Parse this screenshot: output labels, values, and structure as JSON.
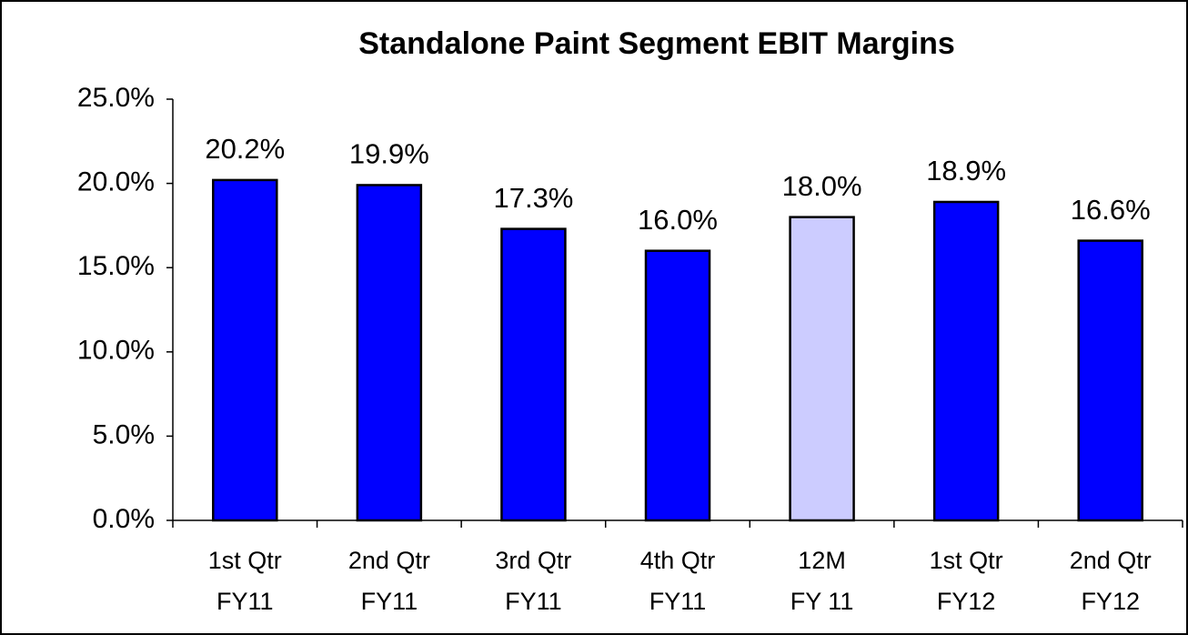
{
  "chart_data": {
    "type": "bar",
    "title": "Standalone Paint Segment EBIT Margins",
    "categories": [
      "1st Qtr\nFY11",
      "2nd Qtr\nFY11",
      "3rd Qtr\nFY11",
      "4th Qtr\nFY11",
      "12M\nFY 11",
      "1st Qtr\nFY12",
      "2nd Qtr\nFY12"
    ],
    "values": [
      20.2,
      19.9,
      17.3,
      16.0,
      18.0,
      18.9,
      16.6
    ],
    "value_labels": [
      "20.2%",
      "19.9%",
      "17.3%",
      "16.0%",
      "18.0%",
      "18.9%",
      "16.6%"
    ],
    "colors": [
      "#0000ff",
      "#0000ff",
      "#0000ff",
      "#0000ff",
      "#ccccff",
      "#0000ff",
      "#0000ff"
    ],
    "ylim": [
      0,
      25
    ],
    "yticks": [
      {
        "value": 0,
        "label": "0.0%"
      },
      {
        "value": 5,
        "label": "5.0%"
      },
      {
        "value": 10,
        "label": "10.0%"
      },
      {
        "value": 15,
        "label": "15.0%"
      },
      {
        "value": 20,
        "label": "20.0%"
      },
      {
        "value": 25,
        "label": "25.0%"
      }
    ],
    "grid": false
  }
}
